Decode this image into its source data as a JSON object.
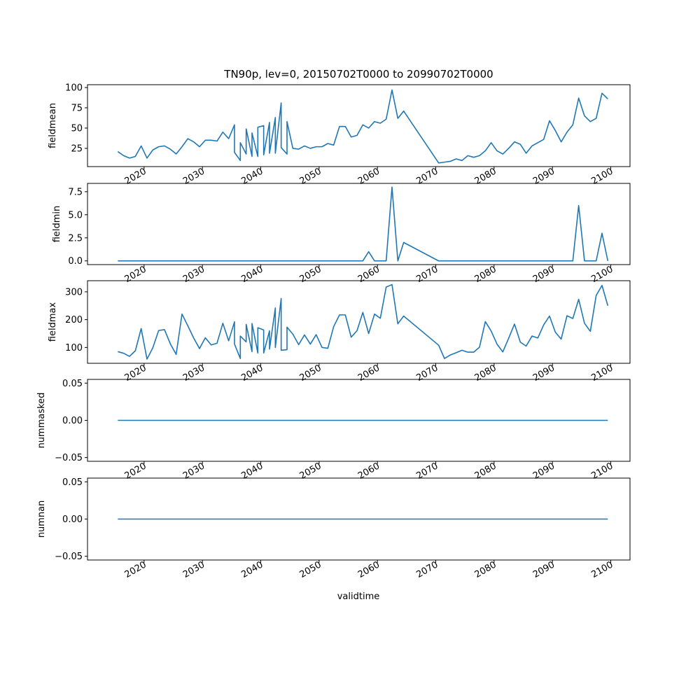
{
  "chart_data": {
    "type": "line",
    "title": "TN90p, lev=0, 20150702T0000 to 20990702T0000",
    "xlabel": "validtime",
    "xlim": [
      2010.3,
      2103.3
    ],
    "xticks": [
      2020,
      2030,
      2040,
      2050,
      2060,
      2070,
      2080,
      2090,
      2100
    ],
    "xtick_labels": [
      "2020",
      "2030",
      "2040",
      "2050",
      "2060",
      "2070",
      "2080",
      "2090",
      "2100"
    ],
    "x": [
      2015.5,
      2016.5,
      2017.5,
      2018.5,
      2019.5,
      2020.5,
      2021.5,
      2022.5,
      2023.5,
      2024.5,
      2025.5,
      2026.5,
      2027.5,
      2028.5,
      2029.5,
      2030.5,
      2031.5,
      2032.5,
      2033.5,
      2034.5,
      2035.5,
      2035.5,
      2036.5,
      2036.5,
      2037.5,
      2037.5,
      2038.5,
      2038.5,
      2039.5,
      2039.5,
      2040.5,
      2040.5,
      2041.5,
      2041.5,
      2042.5,
      2042.5,
      2043.5,
      2043.5,
      2044.5,
      2044.5,
      2045.5,
      2046.5,
      2047.5,
      2048.5,
      2049.5,
      2050.5,
      2051.5,
      2052.5,
      2053.5,
      2054.5,
      2055.5,
      2056.5,
      2057.5,
      2058.5,
      2059.5,
      2060.5,
      2061.5,
      2062.5,
      2063.5,
      2064.5,
      2070.5,
      2071.5,
      2072.5,
      2073.5,
      2074.5,
      2075.5,
      2076.5,
      2077.5,
      2078.5,
      2079.5,
      2080.5,
      2081.5,
      2082.5,
      2083.5,
      2084.5,
      2085.5,
      2086.5,
      2087.5,
      2088.5,
      2089.5,
      2090.5,
      2091.5,
      2092.5,
      2093.5,
      2094.5,
      2095.5,
      2096.5,
      2097.5,
      2098.5,
      2099.5
    ],
    "panels": [
      {
        "ylabel": "fieldmean",
        "ylim": [
          2.5,
          103.5
        ],
        "yticks": [
          25,
          50,
          75,
          100
        ],
        "ytick_labels": [
          "25",
          "50",
          "75",
          "100"
        ],
        "values": [
          21,
          16,
          13,
          15,
          28,
          13,
          23,
          27,
          28,
          24,
          18,
          27,
          37,
          33,
          27,
          35,
          35,
          34,
          45,
          37,
          54,
          20,
          10,
          32,
          18,
          49,
          15,
          44,
          15,
          51,
          53,
          17,
          57,
          19,
          63,
          19,
          81,
          26,
          18,
          58,
          25,
          24,
          28,
          25,
          27,
          27,
          31,
          29,
          52,
          52,
          39,
          41,
          54,
          50,
          58,
          56,
          61,
          97,
          62,
          71,
          7,
          8,
          9,
          12,
          10,
          16,
          14,
          16,
          22,
          32,
          22,
          18,
          25,
          33,
          30,
          19,
          28,
          32,
          36,
          59,
          47,
          33,
          45,
          54,
          87,
          65,
          58,
          62,
          93,
          86
        ]
      },
      {
        "ylabel": "fieldmin",
        "ylim": [
          -0.4,
          8.4
        ],
        "yticks": [
          0.0,
          2.5,
          5.0,
          7.5
        ],
        "ytick_labels": [
          "0.0",
          "2.5",
          "5.0",
          "7.5"
        ],
        "values": [
          0,
          0,
          0,
          0,
          0,
          0,
          0,
          0,
          0,
          0,
          0,
          0,
          0,
          0,
          0,
          0,
          0,
          0,
          0,
          0,
          0,
          0,
          0,
          0,
          0,
          0,
          0,
          0,
          0,
          0,
          0,
          0,
          0,
          0,
          0,
          0,
          0,
          0,
          0,
          0,
          0,
          0,
          0,
          0,
          0,
          0,
          0,
          0,
          0,
          0,
          0,
          0,
          0,
          1,
          0,
          0,
          0,
          8,
          0,
          2,
          0,
          0,
          0,
          0,
          0,
          0,
          0,
          0,
          0,
          0,
          0,
          0,
          0,
          0,
          0,
          0,
          0,
          0,
          0,
          0,
          0,
          0,
          0,
          0,
          6,
          0,
          0,
          0,
          3,
          0
        ]
      },
      {
        "ylabel": "fieldmax",
        "ylim": [
          43,
          340
        ],
        "yticks": [
          100,
          200,
          300
        ],
        "ytick_labels": [
          "100",
          "200",
          "300"
        ],
        "values": [
          85,
          79,
          68,
          88,
          168,
          58,
          99,
          161,
          164,
          113,
          75,
          220,
          178,
          134,
          96,
          135,
          109,
          115,
          187,
          124,
          192,
          112,
          60,
          141,
          120,
          183,
          85,
          186,
          80,
          171,
          163,
          80,
          160,
          94,
          242,
          100,
          276,
          90,
          92,
          173,
          148,
          110,
          145,
          112,
          146,
          100,
          97,
          175,
          217,
          217,
          137,
          160,
          226,
          150,
          220,
          205,
          317,
          326,
          185,
          213,
          108,
          60,
          73,
          81,
          90,
          83,
          83,
          101,
          193,
          159,
          112,
          84,
          133,
          184,
          119,
          105,
          141,
          134,
          181,
          213,
          155,
          130,
          214,
          204,
          273,
          187,
          158,
          287,
          323,
          250
        ]
      },
      {
        "ylabel": "nummasked",
        "ylim": [
          -0.055,
          0.055
        ],
        "yticks": [
          -0.05,
          0.0,
          0.05
        ],
        "ytick_labels": [
          "−0.05",
          "0.00",
          "0.05"
        ],
        "constant": 0.0
      },
      {
        "ylabel": "numnan",
        "ylim": [
          -0.055,
          0.055
        ],
        "yticks": [
          -0.05,
          0.0,
          0.05
        ],
        "ytick_labels": [
          "−0.05",
          "0.00",
          "0.05"
        ],
        "constant": 0.0
      }
    ],
    "line_color": "#1f77b4",
    "grid": false,
    "legend": "none"
  }
}
